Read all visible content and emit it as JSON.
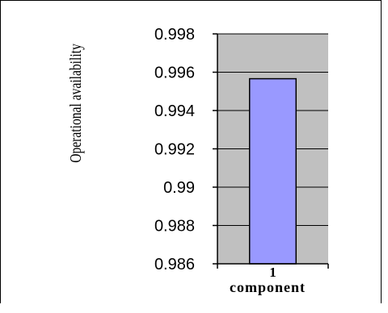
{
  "chart_data": {
    "type": "bar",
    "categories": [
      "1"
    ],
    "values": [
      0.99566
    ],
    "xlabel": "component",
    "ylabel": "Operational availability",
    "ylim": [
      0.986,
      0.998
    ],
    "yticks": [
      "0.986",
      "0.988",
      "0.99",
      "0.992",
      "0.994",
      "0.996",
      "0.998"
    ],
    "grid": true,
    "legend": "none",
    "colors": {
      "bar_fill": "#9999ff",
      "plot_background": "#c0c0c0",
      "grid": "#000000"
    }
  }
}
